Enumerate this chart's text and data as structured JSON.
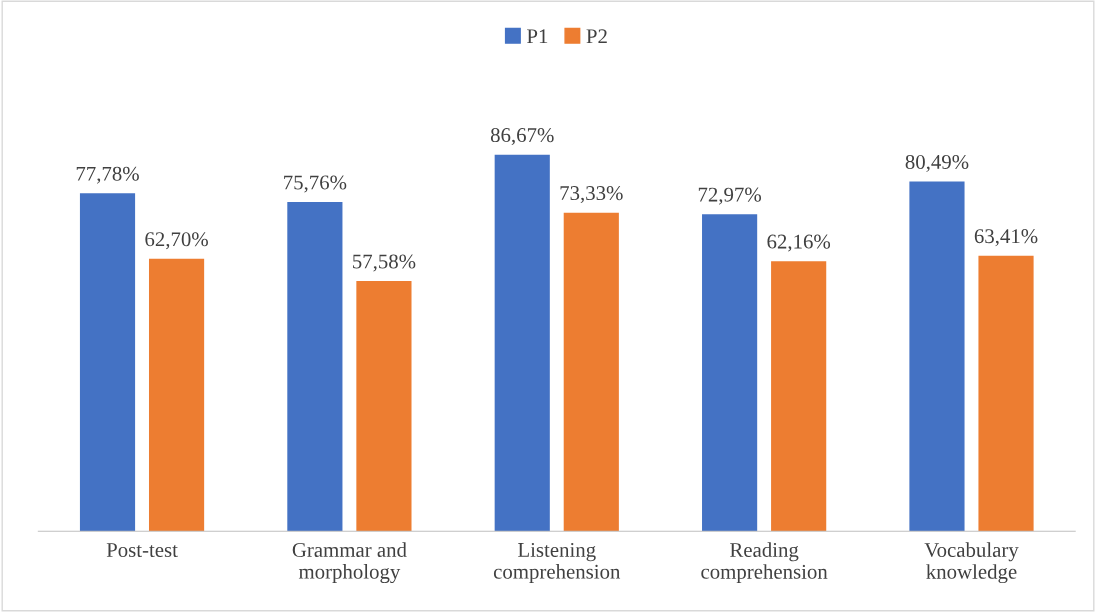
{
  "chart_data": {
    "type": "bar",
    "categories": [
      "Post-test",
      "Grammar and\nmorphology",
      "Listening\ncomprehension",
      "Reading\ncomprehension",
      "Vocabulary\nknowledge"
    ],
    "series": [
      {
        "name": "P1",
        "color": "#4472c4",
        "values": [
          77.78,
          75.76,
          86.67,
          72.97,
          80.49
        ],
        "value_labels": [
          "77,78%",
          "75,76%",
          "86,67%",
          "72,97%",
          "80,49%"
        ]
      },
      {
        "name": "P2",
        "color": "#ed7d31",
        "values": [
          62.7,
          57.58,
          73.33,
          62.16,
          63.41
        ],
        "value_labels": [
          "62,70%",
          "57,58%",
          "73,33%",
          "62,16%",
          "63,41%"
        ]
      }
    ],
    "legend": "top",
    "grid": false,
    "tick_labels": "x"
  }
}
